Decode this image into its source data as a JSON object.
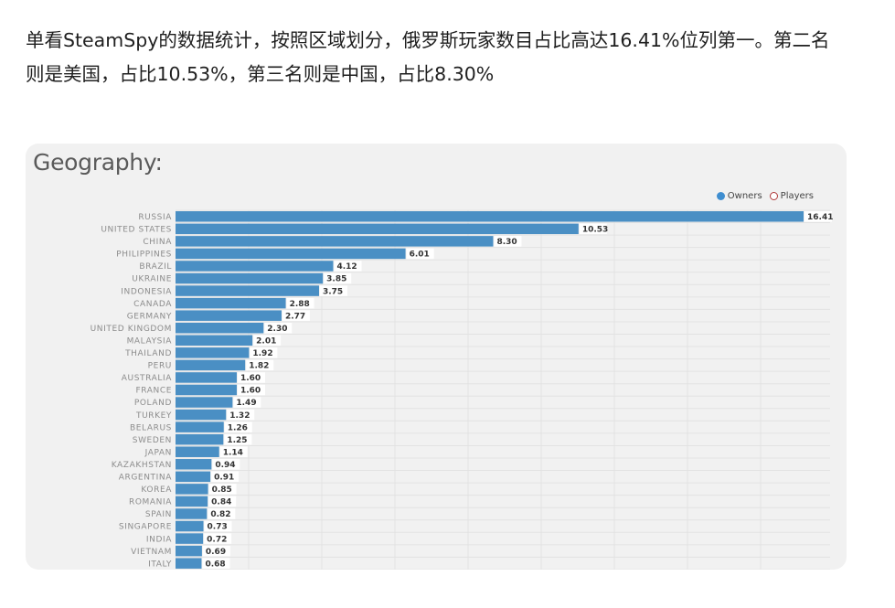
{
  "article": {
    "text": "单看SteamSpy的数据统计，按照区域划分，俄罗斯玩家数目占比高达16.41%位列第一。第二名则是美国，占比10.53%，第三名则是中国，占比8.30%"
  },
  "chart_data": {
    "type": "bar",
    "orientation": "horizontal",
    "title": "Geography:",
    "legend": {
      "placement": "top-right",
      "items": [
        {
          "label": "Owners",
          "color": "#3f8ed0",
          "style": "filled"
        },
        {
          "label": "Players",
          "color": "#b03a3a",
          "style": "outline"
        }
      ]
    },
    "categories": [
      "RUSSIA",
      "UNITED STATES",
      "CHINA",
      "PHILIPPINES",
      "BRAZIL",
      "UKRAINE",
      "INDONESIA",
      "CANADA",
      "GERMANY",
      "UNITED KINGDOM",
      "MALAYSIA",
      "THAILAND",
      "PERU",
      "AUSTRALIA",
      "FRANCE",
      "POLAND",
      "TURKEY",
      "BELARUS",
      "SWEDEN",
      "JAPAN",
      "KAZAKHSTAN",
      "ARGENTINA",
      "KOREA",
      "ROMANIA",
      "SPAIN",
      "SINGAPORE",
      "INDIA",
      "VIETNAM",
      "ITALY"
    ],
    "series": [
      {
        "name": "Owners",
        "color": "#4a8fc4",
        "values": [
          16.41,
          10.53,
          8.3,
          6.01,
          4.12,
          3.85,
          3.75,
          2.88,
          2.77,
          2.3,
          2.01,
          1.92,
          1.82,
          1.6,
          1.6,
          1.49,
          1.32,
          1.26,
          1.25,
          1.14,
          0.94,
          0.91,
          0.85,
          0.84,
          0.82,
          0.73,
          0.72,
          0.69,
          0.68
        ],
        "value_labels": [
          "16.41",
          "10.53",
          "8.30",
          "6.01",
          "4.12",
          "3.85",
          "3.75",
          "2.88",
          "2.77",
          "2.30",
          "2.01",
          "1.92",
          "1.82",
          "1.60",
          "1.60",
          "1.49",
          "1.32",
          "1.26",
          "1.25",
          "1.14",
          "0.94",
          "0.91",
          "0.85",
          "0.84",
          "0.82",
          "0.73",
          "0.72",
          "0.69",
          "0.68"
        ]
      }
    ],
    "xlim": [
      0,
      17
    ],
    "grid": true
  }
}
